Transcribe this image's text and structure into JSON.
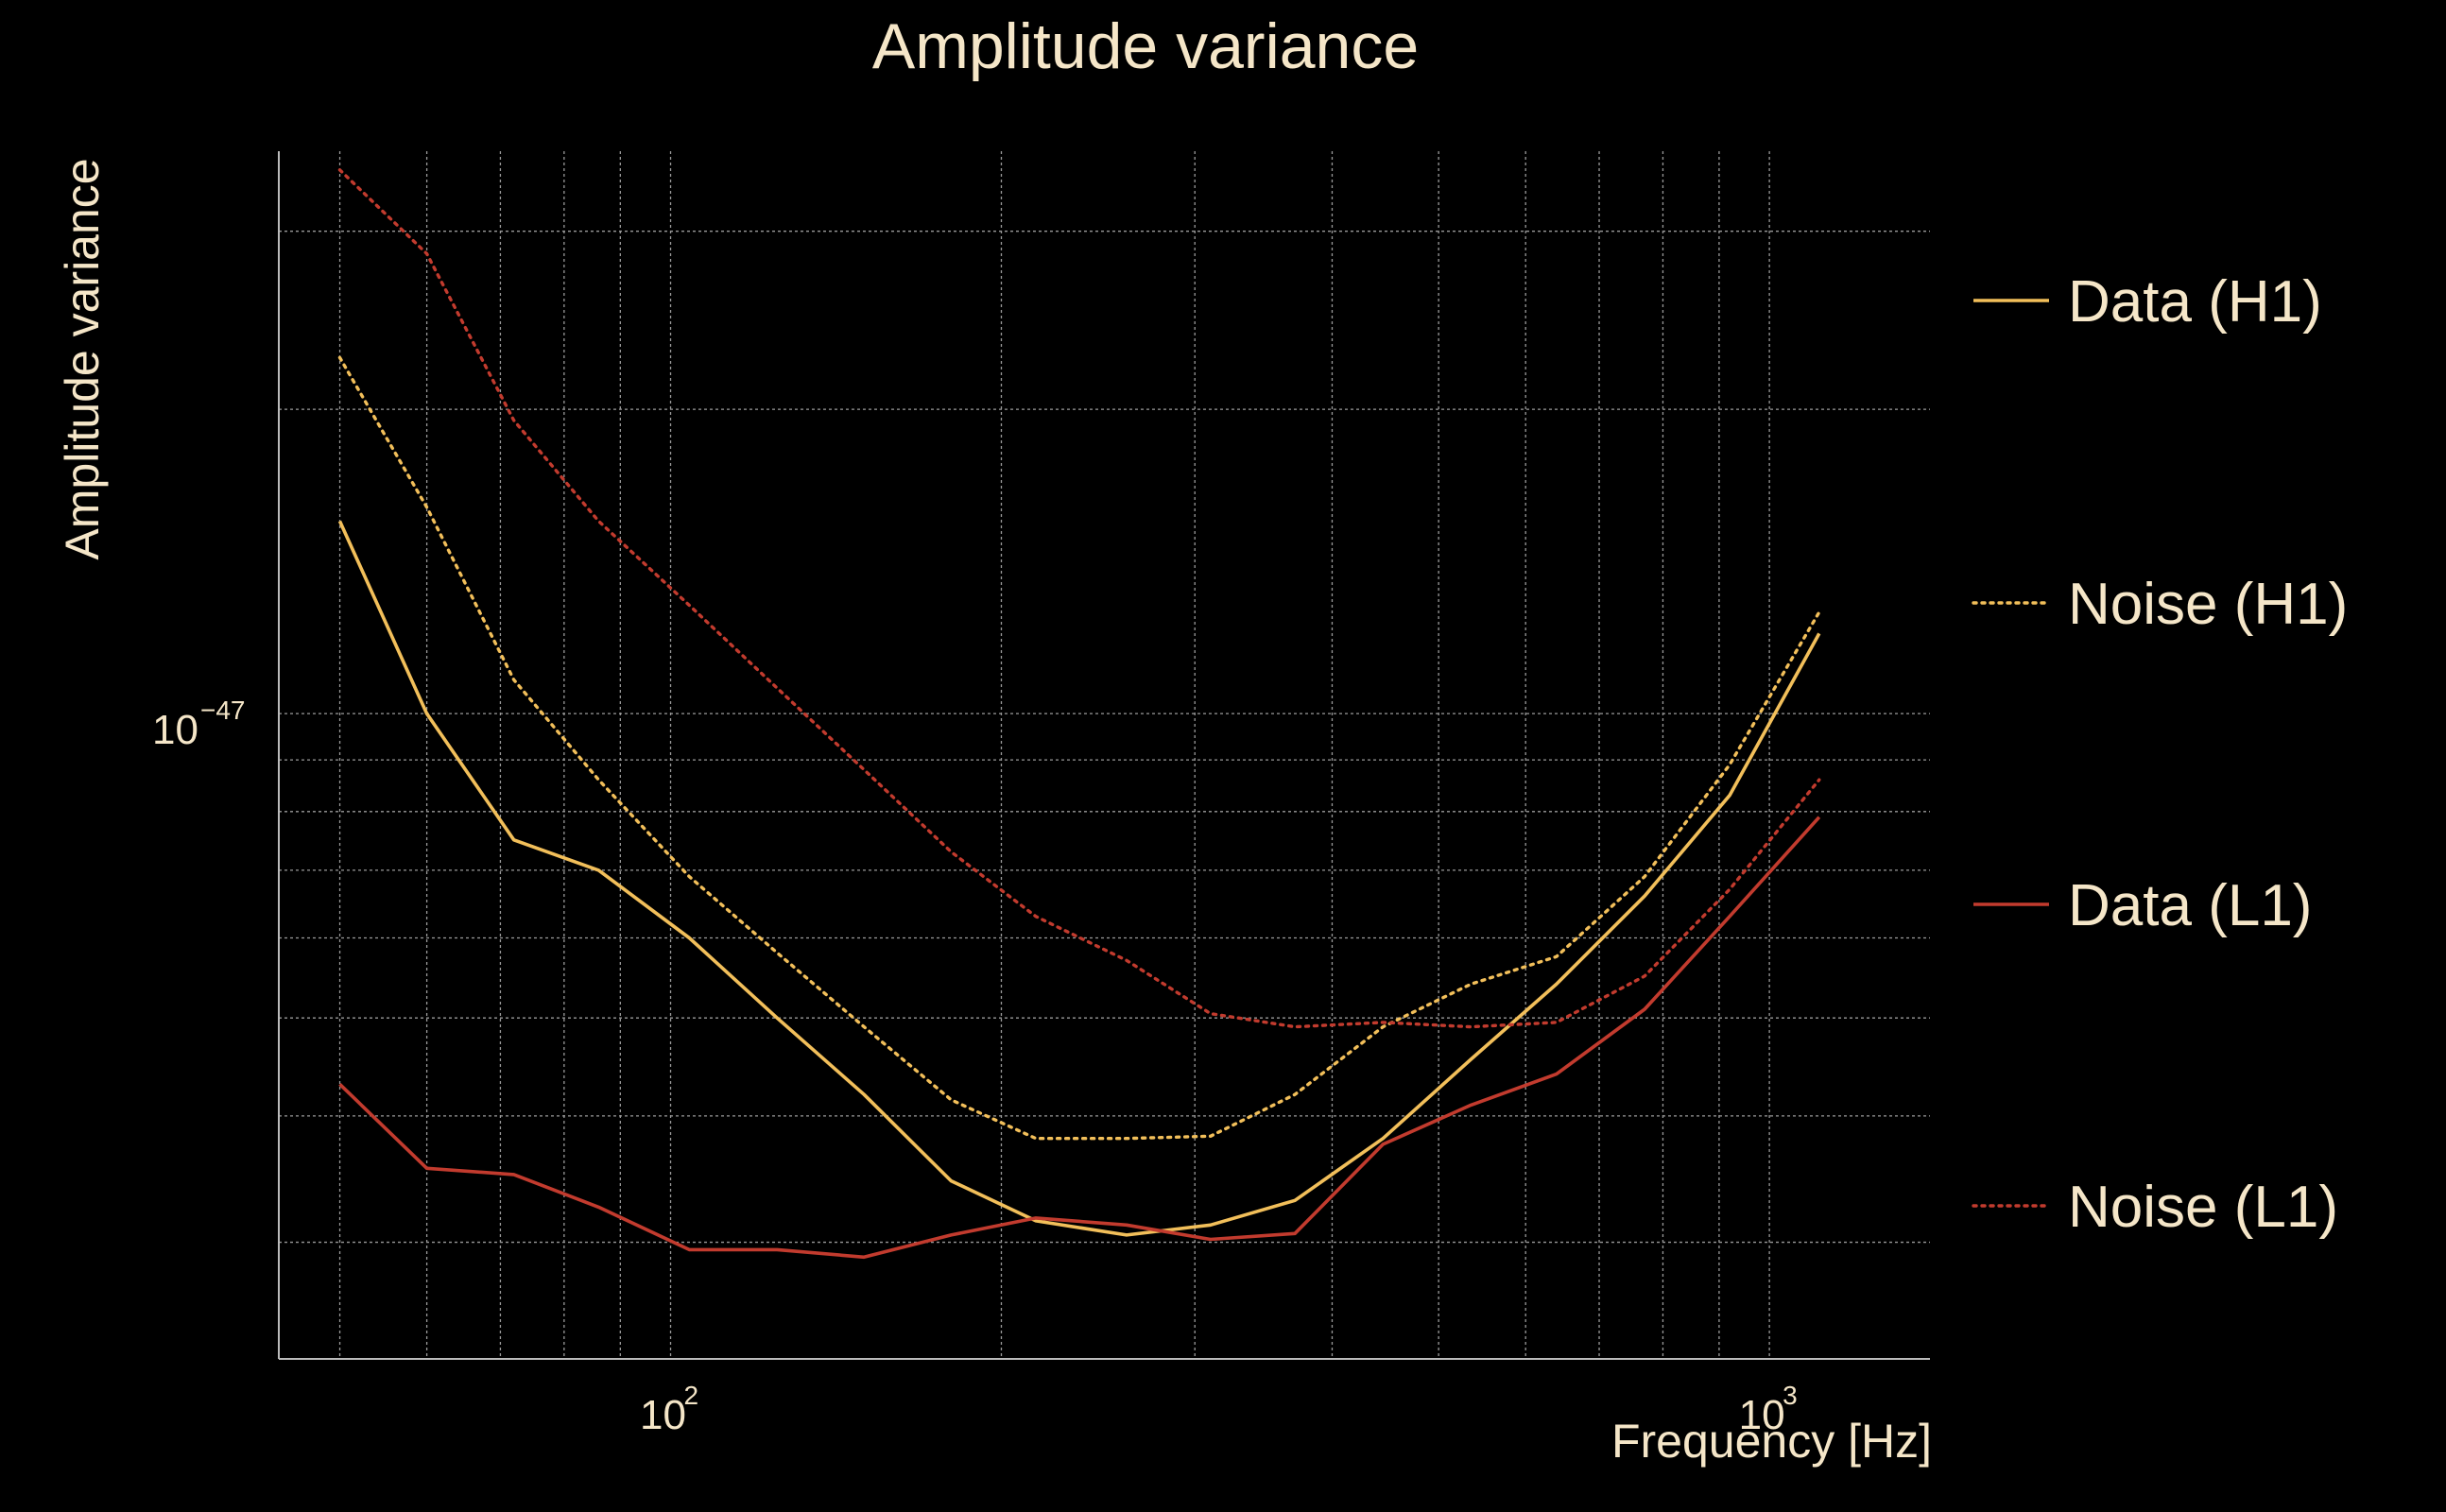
{
  "chart_data": {
    "type": "line",
    "title": "Amplitude variance",
    "xlabel": "Frequency [Hz]",
    "ylabel": "Amplitude variance",
    "xscale": "log",
    "yscale": "log",
    "xlim": [
      44,
      1400
    ],
    "ylim": [
      2.3e-48,
      3.6e-47
    ],
    "x_ticks": [
      {
        "base": "10",
        "exp": "2"
      },
      {
        "base": "10",
        "exp": "3"
      }
    ],
    "y_ticks": [
      {
        "base": "10",
        "exp": "−47"
      }
    ],
    "grid": true,
    "legend_position": "right",
    "x": [
      50,
      60,
      72,
      86,
      104,
      125,
      150,
      180,
      215,
      260,
      310,
      370,
      445,
      535,
      640,
      770,
      920,
      1110
    ],
    "series": [
      {
        "name": "Data (H1)",
        "color": "#f2bf5a",
        "style": "solid",
        "values": [
          1.55e-47,
          1e-47,
          7.5e-48,
          7e-48,
          6e-48,
          5e-48,
          4.2e-48,
          3.45e-48,
          3.15e-48,
          3.05e-48,
          3.12e-48,
          3.3e-48,
          3.8e-48,
          4.55e-48,
          5.4e-48,
          6.6e-48,
          8.3e-48,
          1.2e-47
        ]
      },
      {
        "name": "Noise (H1)",
        "color": "#f2bf5a",
        "style": "dotted",
        "values": [
          2.25e-47,
          1.6e-47,
          1.08e-47,
          8.6e-48,
          6.9e-48,
          5.8e-48,
          4.9e-48,
          4.15e-48,
          3.8e-48,
          3.8e-48,
          3.82e-48,
          4.2e-48,
          4.9e-48,
          5.4e-48,
          5.75e-48,
          6.9e-48,
          8.9e-48,
          1.26e-47
        ]
      },
      {
        "name": "Data (L1)",
        "color": "#c23b2e",
        "style": "solid",
        "values": [
          4.3e-48,
          3.55e-48,
          3.5e-48,
          3.25e-48,
          2.95e-48,
          2.95e-48,
          2.9e-48,
          3.05e-48,
          3.17e-48,
          3.12e-48,
          3.02e-48,
          3.06e-48,
          3.75e-48,
          4.1e-48,
          4.4e-48,
          5.1e-48,
          6.3e-48,
          7.9e-48
        ]
      },
      {
        "name": "Noise (L1)",
        "color": "#c23b2e",
        "style": "dotted",
        "values": [
          3.45e-47,
          2.85e-47,
          1.95e-47,
          1.55e-47,
          1.28e-47,
          1.06e-47,
          8.8e-48,
          7.3e-48,
          6.3e-48,
          5.7e-48,
          5.05e-48,
          4.9e-48,
          4.95e-48,
          4.9e-48,
          4.95e-48,
          5.5e-48,
          6.7e-48,
          8.6e-48
        ]
      }
    ]
  }
}
